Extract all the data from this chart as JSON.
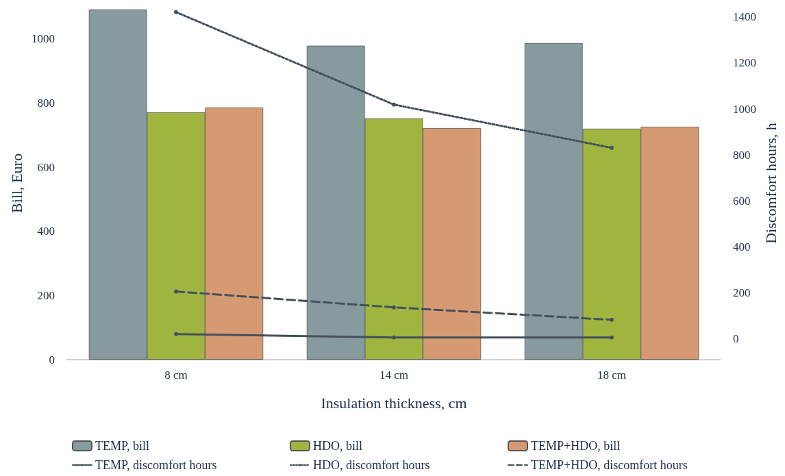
{
  "chart_data": {
    "type": "bar",
    "xlabel": "Insulation thickness, cm",
    "ylabel": "Bill, Euro",
    "y2label": "Discomfort hours, h",
    "categories": [
      "8 cm",
      "14 cm",
      "18 cm"
    ],
    "series": [
      {
        "name": "TEMP, bill",
        "color": "#879a9e",
        "values": [
          1092,
          979,
          987
        ]
      },
      {
        "name": "HDO, bill",
        "color": "#9fb53f",
        "values": [
          771,
          752,
          720
        ]
      },
      {
        "name": "TEMP+HDO, bill",
        "color": "#d69a72",
        "values": [
          786,
          722,
          726
        ]
      },
      {
        "name": "TEMP, discomfort hours",
        "type": "line",
        "axis": "y2",
        "color": "#44505c",
        "line_style": "solid",
        "marker": "circle",
        "values": [
          21,
          6,
          6
        ]
      },
      {
        "name": "HDO, discomfort hours",
        "type": "line",
        "axis": "y2",
        "color": "#44505c",
        "line_style": "dotted",
        "marker": "circle",
        "values": [
          1421,
          1019,
          831
        ]
      },
      {
        "name": "TEMP+HDO, discomfort hours",
        "type": "line",
        "axis": "y2",
        "color": "#44505c",
        "line_style": "dashed",
        "marker": "circle",
        "values": [
          206,
          137,
          83
        ]
      }
    ],
    "ylim": [
      0,
      1100
    ],
    "yticks": [
      0,
      200,
      400,
      600,
      800,
      1000
    ],
    "y2lim": [
      -90,
      1444
    ],
    "y2ticks": [
      0,
      200,
      400,
      600,
      800,
      1000,
      1200,
      1400
    ],
    "grid": false,
    "legend": "bottom"
  }
}
